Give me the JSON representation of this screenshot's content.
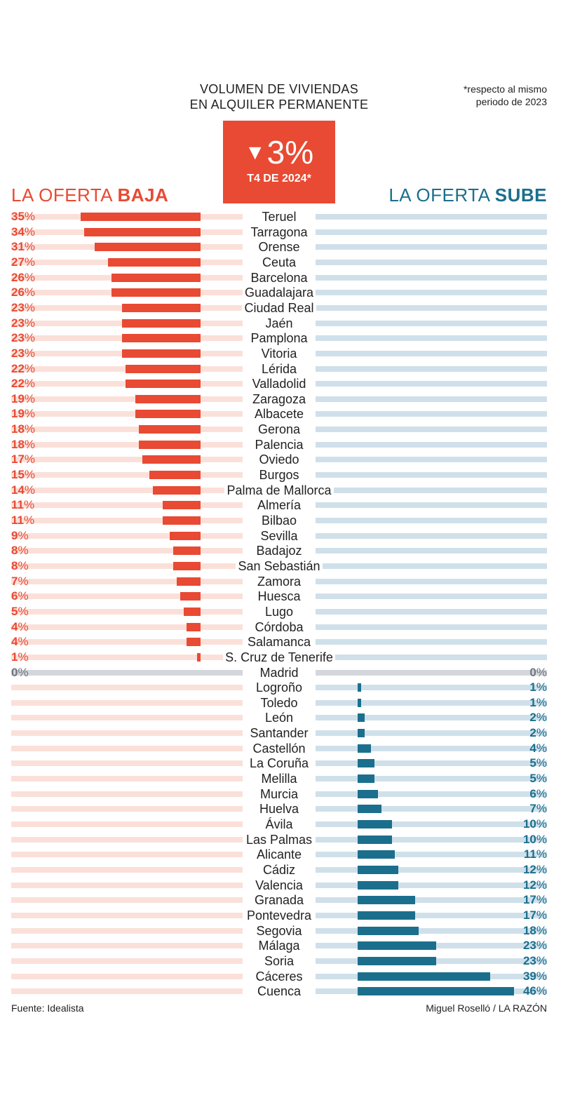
{
  "title_line1": "VOLUMEN DE VIVIENDAS",
  "title_line2": "EN ALQUILER PERMANENTE",
  "note_line1": "*respecto al mismo",
  "note_line2": "periodo de 2023",
  "badge_value": "3%",
  "badge_period": "T4 DE 2024*",
  "left_title_prefix": "LA OFERTA ",
  "left_title_bold": "BAJA",
  "right_title_prefix": "LA OFERTA ",
  "right_title_bold": "SUBE",
  "source": "Fuente: Idealista",
  "credit": "Miguel Roselló / LA RAZÓN",
  "colors": {
    "down": "#e84a33",
    "down_track": "#fbe0d9",
    "up": "#1b6f8d",
    "up_track": "#cfe0ea",
    "neutral": "#d3d6db",
    "neutral_text": "#6f7680"
  },
  "chart_data": {
    "type": "bar",
    "title": "VOLUMEN DE VIVIENDAS EN ALQUILER PERMANENTE",
    "subtitle": "3% T4 DE 2024*",
    "unit": "%",
    "xlim": [
      0,
      46
    ],
    "series": [
      {
        "name": "LA OFERTA BAJA",
        "direction": "down"
      },
      {
        "name": "LA OFERTA SUBE",
        "direction": "up"
      }
    ],
    "rows": [
      {
        "city": "Teruel",
        "value": 35,
        "direction": "down"
      },
      {
        "city": "Tarragona",
        "value": 34,
        "direction": "down"
      },
      {
        "city": "Orense",
        "value": 31,
        "direction": "down"
      },
      {
        "city": "Ceuta",
        "value": 27,
        "direction": "down"
      },
      {
        "city": "Barcelona",
        "value": 26,
        "direction": "down"
      },
      {
        "city": "Guadalajara",
        "value": 26,
        "direction": "down"
      },
      {
        "city": "Ciudad Real",
        "value": 23,
        "direction": "down"
      },
      {
        "city": "Jaén",
        "value": 23,
        "direction": "down"
      },
      {
        "city": "Pamplona",
        "value": 23,
        "direction": "down"
      },
      {
        "city": "Vitoria",
        "value": 23,
        "direction": "down"
      },
      {
        "city": "Lérida",
        "value": 22,
        "direction": "down"
      },
      {
        "city": "Valladolid",
        "value": 22,
        "direction": "down"
      },
      {
        "city": "Zaragoza",
        "value": 19,
        "direction": "down"
      },
      {
        "city": "Albacete",
        "value": 19,
        "direction": "down"
      },
      {
        "city": "Gerona",
        "value": 18,
        "direction": "down"
      },
      {
        "city": "Palencia",
        "value": 18,
        "direction": "down"
      },
      {
        "city": "Oviedo",
        "value": 17,
        "direction": "down"
      },
      {
        "city": "Burgos",
        "value": 15,
        "direction": "down"
      },
      {
        "city": "Palma de Mallorca",
        "value": 14,
        "direction": "down"
      },
      {
        "city": "Almería",
        "value": 11,
        "direction": "down"
      },
      {
        "city": "Bilbao",
        "value": 11,
        "direction": "down"
      },
      {
        "city": "Sevilla",
        "value": 9,
        "direction": "down"
      },
      {
        "city": "Badajoz",
        "value": 8,
        "direction": "down"
      },
      {
        "city": "San Sebastián",
        "value": 8,
        "direction": "down"
      },
      {
        "city": "Zamora",
        "value": 7,
        "direction": "down"
      },
      {
        "city": "Huesca",
        "value": 6,
        "direction": "down"
      },
      {
        "city": "Lugo",
        "value": 5,
        "direction": "down"
      },
      {
        "city": "Córdoba",
        "value": 4,
        "direction": "down"
      },
      {
        "city": "Salamanca",
        "value": 4,
        "direction": "down"
      },
      {
        "city": "S. Cruz de Tenerife",
        "value": 1,
        "direction": "down"
      },
      {
        "city": "Madrid",
        "value": 0,
        "direction": "none"
      },
      {
        "city": "Logroño",
        "value": 1,
        "direction": "up"
      },
      {
        "city": "Toledo",
        "value": 1,
        "direction": "up"
      },
      {
        "city": "León",
        "value": 2,
        "direction": "up"
      },
      {
        "city": "Santander",
        "value": 2,
        "direction": "up"
      },
      {
        "city": "Castellón",
        "value": 4,
        "direction": "up"
      },
      {
        "city": "La Coruña",
        "value": 5,
        "direction": "up"
      },
      {
        "city": "Melilla",
        "value": 5,
        "direction": "up"
      },
      {
        "city": "Murcia",
        "value": 6,
        "direction": "up"
      },
      {
        "city": "Huelva",
        "value": 7,
        "direction": "up"
      },
      {
        "city": "Ávila",
        "value": 10,
        "direction": "up"
      },
      {
        "city": "Las Palmas",
        "value": 10,
        "direction": "up"
      },
      {
        "city": "Alicante",
        "value": 11,
        "direction": "up"
      },
      {
        "city": "Cádiz",
        "value": 12,
        "direction": "up"
      },
      {
        "city": "Valencia",
        "value": 12,
        "direction": "up"
      },
      {
        "city": "Granada",
        "value": 17,
        "direction": "up"
      },
      {
        "city": "Pontevedra",
        "value": 17,
        "direction": "up"
      },
      {
        "city": "Segovia",
        "value": 18,
        "direction": "up"
      },
      {
        "city": "Málaga",
        "value": 23,
        "direction": "up"
      },
      {
        "city": "Soria",
        "value": 23,
        "direction": "up"
      },
      {
        "city": "Cáceres",
        "value": 39,
        "direction": "up"
      },
      {
        "city": "Cuenca",
        "value": 46,
        "direction": "up"
      }
    ]
  }
}
